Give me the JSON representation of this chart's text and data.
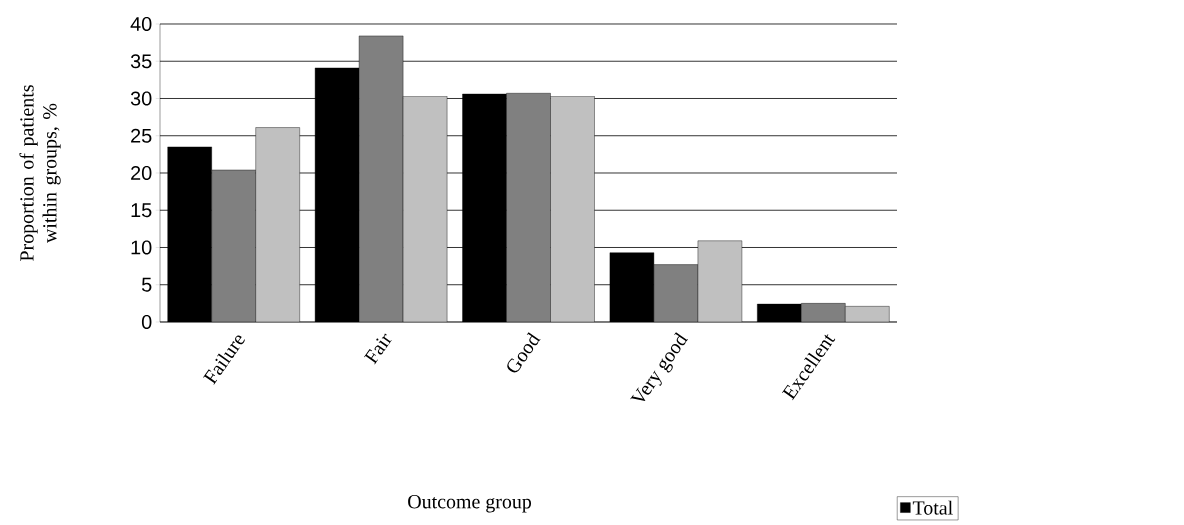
{
  "chart_data": {
    "type": "bar",
    "xlabel": "Outcome group",
    "ylabel": "Proportion of patients within groups, %",
    "categories": [
      "Failure",
      "Fair",
      "Good",
      "Very good",
      "Excellent"
    ],
    "series": [
      {
        "name": "Total",
        "color": "#000000",
        "values": [
          23.5,
          34.1,
          30.6,
          9.3,
          2.4
        ]
      },
      {
        "color": "#808080",
        "values": [
          20.4,
          38.4,
          30.7,
          7.7,
          2.5
        ]
      },
      {
        "color": "#c0c0c0",
        "values": [
          26.1,
          30.3,
          30.3,
          10.9,
          2.1
        ]
      }
    ],
    "ylim": [
      0,
      40
    ],
    "yticks": [
      0,
      5,
      10,
      15,
      20,
      25,
      30,
      35,
      40
    ],
    "grid": "y",
    "legend": "bottom right"
  }
}
